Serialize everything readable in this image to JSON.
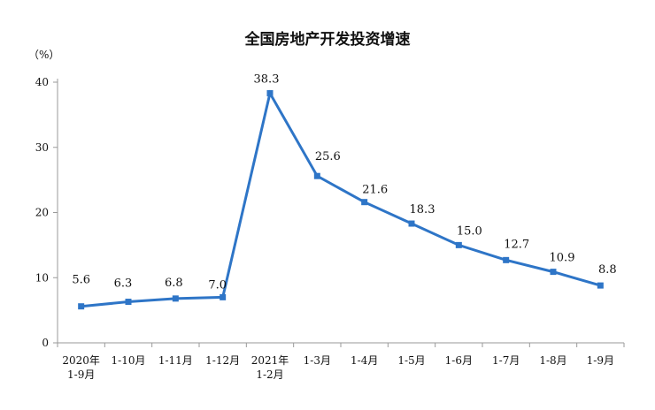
{
  "chart_data": {
    "type": "line",
    "title": "全国房地产开发投资增速",
    "ylabel": "（%）",
    "xlabel": "",
    "ylim": [
      0,
      40
    ],
    "yticks": [
      0,
      10,
      20,
      30,
      40
    ],
    "grid": false,
    "legend": "none",
    "categories": [
      [
        "2020年",
        "1-9月"
      ],
      [
        "1-10月"
      ],
      [
        "1-11月"
      ],
      [
        "1-12月"
      ],
      [
        "2021年",
        "1-2月"
      ],
      [
        "1-3月"
      ],
      [
        "1-4月"
      ],
      [
        "1-5月"
      ],
      [
        "1-6月"
      ],
      [
        "1-7月"
      ],
      [
        "1-8月"
      ],
      [
        "1-9月"
      ]
    ],
    "series": [
      {
        "values": [
          5.6,
          6.3,
          6.8,
          7.0,
          38.3,
          25.6,
          21.6,
          18.3,
          15.0,
          12.7,
          10.9,
          8.8
        ],
        "labels": [
          "5.6",
          "6.3",
          "6.8",
          "7.0",
          "38.3",
          "25.6",
          "21.6",
          "18.3",
          "15.0",
          "12.7",
          "10.9",
          "8.8"
        ],
        "color": "#2e75c7"
      }
    ]
  }
}
